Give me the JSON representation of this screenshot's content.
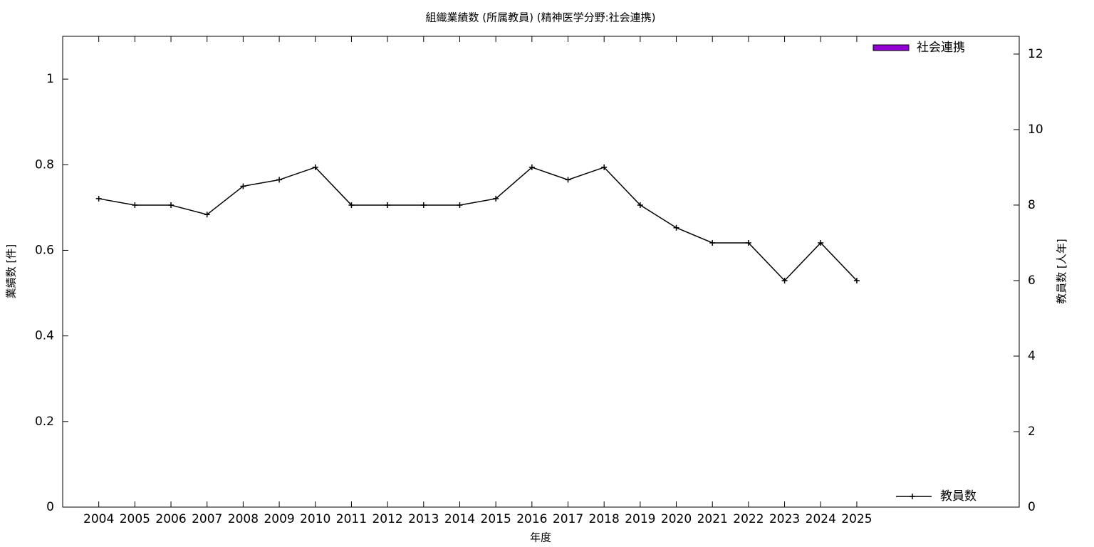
{
  "chart_data": {
    "type": "bar+line",
    "title": "組織業績数 (所属教員) (精神医学分野:社会連携)",
    "x_label": "年度",
    "y_label": "業績数 [件]",
    "y2_label": "教員数 [人年]",
    "categories": [
      "2004",
      "2005",
      "2006",
      "2007",
      "2008",
      "2009",
      "2010",
      "2011",
      "2012",
      "2013",
      "2014",
      "2015",
      "2016",
      "2017",
      "2018",
      "2019",
      "2020",
      "2021",
      "2022",
      "2023",
      "2024",
      "2025"
    ],
    "series": [
      {
        "name": "社会連携",
        "type": "bar",
        "color": "#9400d3",
        "values": [
          0,
          0,
          0,
          0,
          0,
          0,
          0,
          0,
          0,
          0,
          0,
          0,
          0,
          0,
          0,
          0,
          0,
          0,
          0,
          0,
          0,
          0
        ]
      },
      {
        "name": "教員数",
        "type": "line",
        "color": "#000000",
        "axis": "y2",
        "values": [
          8.17,
          8,
          8,
          7.75,
          8.5,
          8.67,
          9,
          8,
          8,
          8,
          8,
          8.17,
          9,
          8.67,
          9,
          8,
          7.4,
          7,
          7,
          6,
          7,
          6
        ]
      }
    ],
    "ylim": [
      0,
      1.1
    ],
    "yticks": [
      0,
      0.2,
      0.4,
      0.6,
      0.8,
      1
    ],
    "y2lim": [
      0,
      12.47
    ],
    "y2ticks": [
      0,
      2,
      4,
      6,
      8,
      10,
      12
    ]
  }
}
